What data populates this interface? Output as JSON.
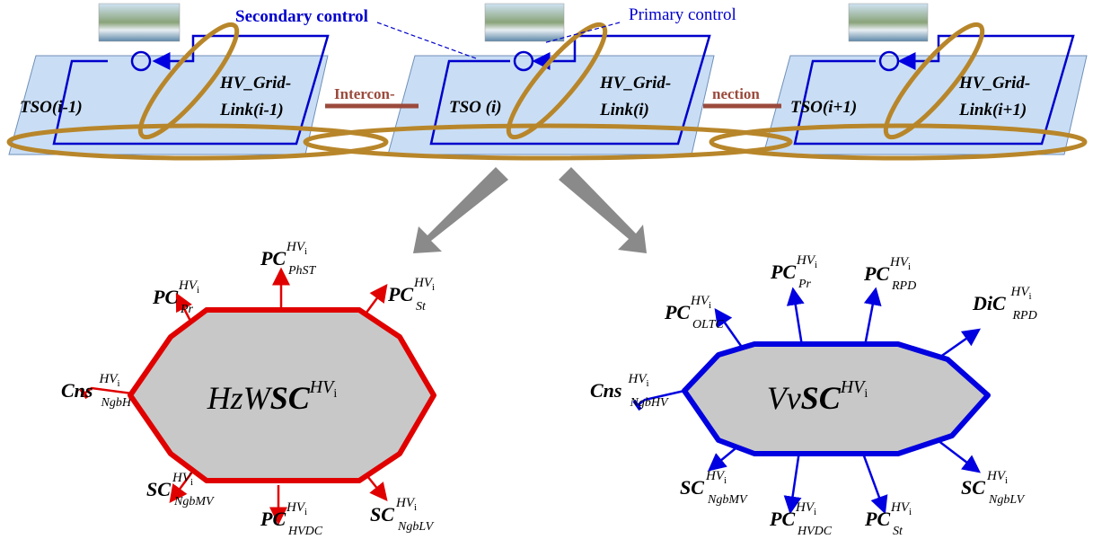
{
  "top": {
    "secondary_control": "Secondary control",
    "primary_control": "Primary control",
    "interconnection": [
      "Intercon-",
      "nection"
    ],
    "areas": [
      {
        "tso": "TSO(i-1)",
        "grid_link": [
          "HV_Grid-",
          "Link(i-1)"
        ]
      },
      {
        "tso": "TSO (i)",
        "grid_link": [
          "HV_Grid-",
          "Link(i)"
        ]
      },
      {
        "tso": "TSO(i+1)",
        "grid_link": [
          "HV_Grid-",
          "Link(i+1)"
        ]
      }
    ]
  },
  "controllers": [
    {
      "center": {
        "base": "HzW",
        "bold": "SC",
        "sup": "HV",
        "sup_sub": "i"
      },
      "labels": [
        {
          "base": "PC",
          "sup": "HV",
          "sup_sub": "i",
          "sub": "Pr"
        },
        {
          "base": "PC",
          "sup": "HV",
          "sup_sub": "i",
          "sub": "PhST"
        },
        {
          "base": "PC",
          "sup": "HV",
          "sup_sub": "i",
          "sub": "St"
        },
        {
          "base": "Cns",
          "sup": "HV",
          "sup_sub": "i",
          "sub": "NgbHV"
        },
        {
          "base": "SC",
          "sup": "HV",
          "sup_sub": "i",
          "sub": "NgbMV"
        },
        {
          "base": "PC",
          "sup": "HV",
          "sup_sub": "i",
          "sub": "HVDC"
        },
        {
          "base": "SC",
          "sup": "HV",
          "sup_sub": "i",
          "sub": "NgbLV"
        }
      ]
    },
    {
      "center": {
        "base": "Vv",
        "bold": "SC",
        "sup": "HV",
        "sup_sub": "i"
      },
      "labels": [
        {
          "base": "PC",
          "sup": "HV",
          "sup_sub": "i",
          "sub": "OLTC"
        },
        {
          "base": "PC",
          "sup": "HV",
          "sup_sub": "i",
          "sub": "Pr"
        },
        {
          "base": "PC",
          "sup": "HV",
          "sup_sub": "i",
          "sub": "RPD"
        },
        {
          "base": "DiC",
          "sup": "HV",
          "sup_sub": "i",
          "sub": "RPD"
        },
        {
          "base": "Cns",
          "sup": "HV",
          "sup_sub": "i",
          "sub": "NgbHV"
        },
        {
          "base": "SC",
          "sup": "HV",
          "sup_sub": "i",
          "sub": "NgbMV"
        },
        {
          "base": "PC",
          "sup": "HV",
          "sup_sub": "i",
          "sub": "HVDC"
        },
        {
          "base": "PC",
          "sup": "HV",
          "sup_sub": "i",
          "sub": "St"
        },
        {
          "base": "SC",
          "sup": "HV",
          "sup_sub": "i",
          "sub": "NgbLV"
        }
      ]
    }
  ]
}
